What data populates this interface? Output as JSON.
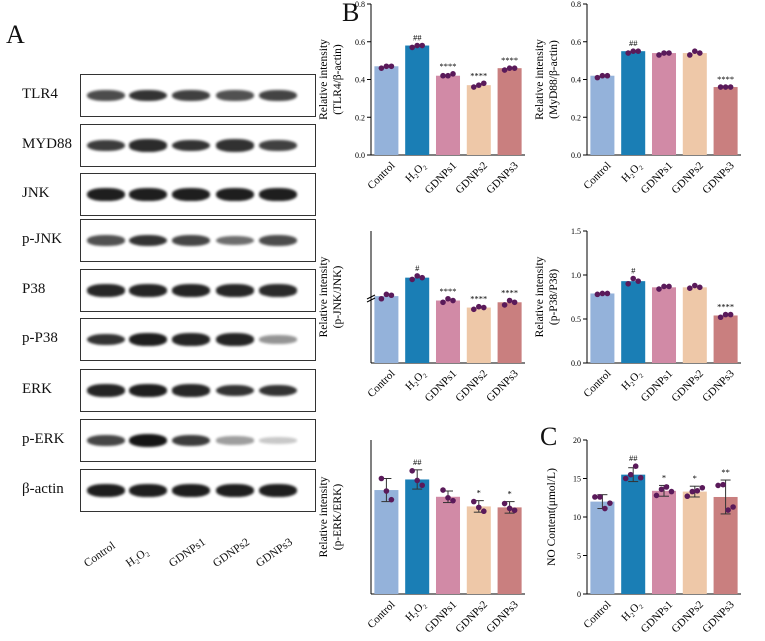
{
  "panels": {
    "a": "A",
    "b": "B",
    "c": "C"
  },
  "western_blot": {
    "proteins": [
      {
        "name": "TLR4",
        "intensity": [
          0.72,
          0.85,
          0.78,
          0.7,
          0.76
        ]
      },
      {
        "name": "MYD88",
        "intensity": [
          0.8,
          0.88,
          0.85,
          0.86,
          0.78
        ]
      },
      {
        "name": "JNK",
        "intensity": [
          0.95,
          0.95,
          0.95,
          0.95,
          0.95
        ]
      },
      {
        "name": "p-JNK",
        "intensity": [
          0.7,
          0.85,
          0.75,
          0.55,
          0.72
        ]
      },
      {
        "name": "P38",
        "intensity": [
          0.9,
          0.92,
          0.92,
          0.9,
          0.88
        ]
      },
      {
        "name": "p-P38",
        "intensity": [
          0.85,
          0.95,
          0.92,
          0.92,
          0.35
        ]
      },
      {
        "name": "ERK",
        "intensity": [
          0.92,
          0.95,
          0.9,
          0.85,
          0.85
        ]
      },
      {
        "name": "p-ERK",
        "intensity": [
          0.75,
          1.0,
          0.8,
          0.3,
          0.1
        ]
      },
      {
        "name": "β-actin",
        "intensity": [
          0.95,
          0.95,
          0.95,
          0.95,
          0.95
        ]
      }
    ],
    "lanes": [
      "Control",
      "H₂O₂",
      "GDNPs1",
      "GDNPs2",
      "GDNPs3"
    ]
  },
  "chart_data": [
    {
      "type": "bar",
      "categories": [
        "Control",
        "H₂O₂",
        "GDNPs1",
        "GDNPs2",
        "GDNPs3"
      ],
      "values": [
        0.47,
        0.58,
        0.42,
        0.37,
        0.46
      ],
      "points": [
        [
          0.46,
          0.47,
          0.47
        ],
        [
          0.57,
          0.58,
          0.58
        ],
        [
          0.42,
          0.42,
          0.43
        ],
        [
          0.36,
          0.37,
          0.38
        ],
        [
          0.45,
          0.46,
          0.46
        ]
      ],
      "significance": [
        "",
        "##",
        "****",
        "****",
        "****"
      ],
      "ylabel": [
        "Relative intensity",
        "(TLR4/β-actin)"
      ],
      "ylim": [
        0,
        0.8
      ],
      "yticks": [
        "0.0",
        "0.2",
        "0.4",
        "0.6",
        "0.8"
      ]
    },
    {
      "type": "bar",
      "categories": [
        "Control",
        "H₂O₂",
        "GDNPs1",
        "GDNPs2",
        "GDNPs3"
      ],
      "values": [
        0.42,
        0.55,
        0.54,
        0.54,
        0.36
      ],
      "points": [
        [
          0.41,
          0.42,
          0.42
        ],
        [
          0.54,
          0.55,
          0.55
        ],
        [
          0.53,
          0.54,
          0.54
        ],
        [
          0.53,
          0.55,
          0.54
        ],
        [
          0.36,
          0.36,
          0.36
        ]
      ],
      "significance": [
        "",
        "##",
        "",
        "",
        "****"
      ],
      "ylabel": [
        "Relative intensity",
        "(MyD88/β-actin)"
      ],
      "ylim": [
        0,
        0.8
      ],
      "yticks": [
        "0.0",
        "0.2",
        "0.4",
        "0.6",
        "0.8"
      ]
    },
    {
      "type": "bar",
      "categories": [
        "Control",
        "H₂O₂",
        "GDNPs1",
        "GDNPs2",
        "GDNPs3"
      ],
      "values": [
        0.76,
        0.97,
        0.71,
        0.63,
        0.69
      ],
      "points": [
        [
          0.73,
          0.78,
          0.77
        ],
        [
          0.95,
          0.99,
          0.97
        ],
        [
          0.69,
          0.73,
          0.71
        ],
        [
          0.61,
          0.64,
          0.63
        ],
        [
          0.66,
          0.71,
          0.69
        ]
      ],
      "significance": [
        "",
        "#",
        "****",
        "****",
        "****"
      ],
      "ylabel": [
        "Relative intensity",
        "(p-JNK/JNK)"
      ],
      "ylim": [
        0,
        1.5
      ],
      "yticks": [],
      "axis_break": true
    },
    {
      "type": "bar",
      "categories": [
        "Control",
        "H₂O₂",
        "GDNPs1",
        "GDNPs2",
        "GDNPs3"
      ],
      "values": [
        0.79,
        0.93,
        0.86,
        0.86,
        0.54
      ],
      "points": [
        [
          0.78,
          0.79,
          0.79
        ],
        [
          0.9,
          0.96,
          0.93
        ],
        [
          0.84,
          0.87,
          0.87
        ],
        [
          0.85,
          0.88,
          0.86
        ],
        [
          0.52,
          0.55,
          0.55
        ]
      ],
      "significance": [
        "",
        "#",
        "",
        "",
        "****"
      ],
      "ylabel": [
        "Relative intensity",
        "(p-P38/P38)"
      ],
      "ylim": [
        0,
        1.5
      ],
      "yticks": [
        "0.0",
        "0.5",
        "1.0",
        "1.5"
      ]
    },
    {
      "type": "bar",
      "categories": [
        "Control",
        "H₂O₂",
        "GDNPs1",
        "GDNPs2",
        "GDNPs3"
      ],
      "values": [
        1.08,
        1.19,
        1.01,
        0.91,
        0.9
      ],
      "errors": [
        0.12,
        0.1,
        0.06,
        0.06,
        0.06
      ],
      "points": [
        [
          1.2,
          1.07,
          0.98
        ],
        [
          1.28,
          1.18,
          1.13
        ],
        [
          1.08,
          1.0,
          0.97
        ],
        [
          0.96,
          0.9,
          0.86
        ],
        [
          0.94,
          0.89,
          0.87
        ]
      ],
      "significance": [
        "",
        "##",
        "",
        "*",
        "*"
      ],
      "ylabel": [
        "Relative intensity",
        "(p-ERK/ERK)"
      ],
      "ylim": [
        0,
        1.6
      ],
      "yticks": []
    },
    {
      "type": "bar",
      "categories": [
        "Control",
        "H₂O₂",
        "GDNPs1",
        "GDNPs2",
        "GDNPs3"
      ],
      "values": [
        12.0,
        15.5,
        13.4,
        13.3,
        12.6
      ],
      "errors": [
        0.9,
        0.9,
        0.7,
        0.7,
        2.2
      ],
      "points": [
        [
          12.6,
          12.6,
          11.1,
          11.8
        ],
        [
          15.0,
          15.5,
          16.6,
          15.1
        ],
        [
          12.8,
          13.6,
          13.9,
          13.3
        ],
        [
          12.7,
          13.3,
          13.4,
          13.8
        ],
        [
          14.1,
          14.2,
          10.9,
          11.3
        ]
      ],
      "significance": [
        "",
        "##",
        "*",
        "*",
        "**"
      ],
      "ylabel": [
        "NO Content(μmol/L)"
      ],
      "ylim": [
        0,
        20
      ],
      "yticks": [
        "0",
        "5",
        "10",
        "15",
        "20"
      ]
    }
  ],
  "colors": {
    "bars": [
      "#94b2da",
      "#1a7eb5",
      "#d18aa6",
      "#eec8a8",
      "#c97f7f"
    ],
    "points": "#5a1a5a"
  }
}
